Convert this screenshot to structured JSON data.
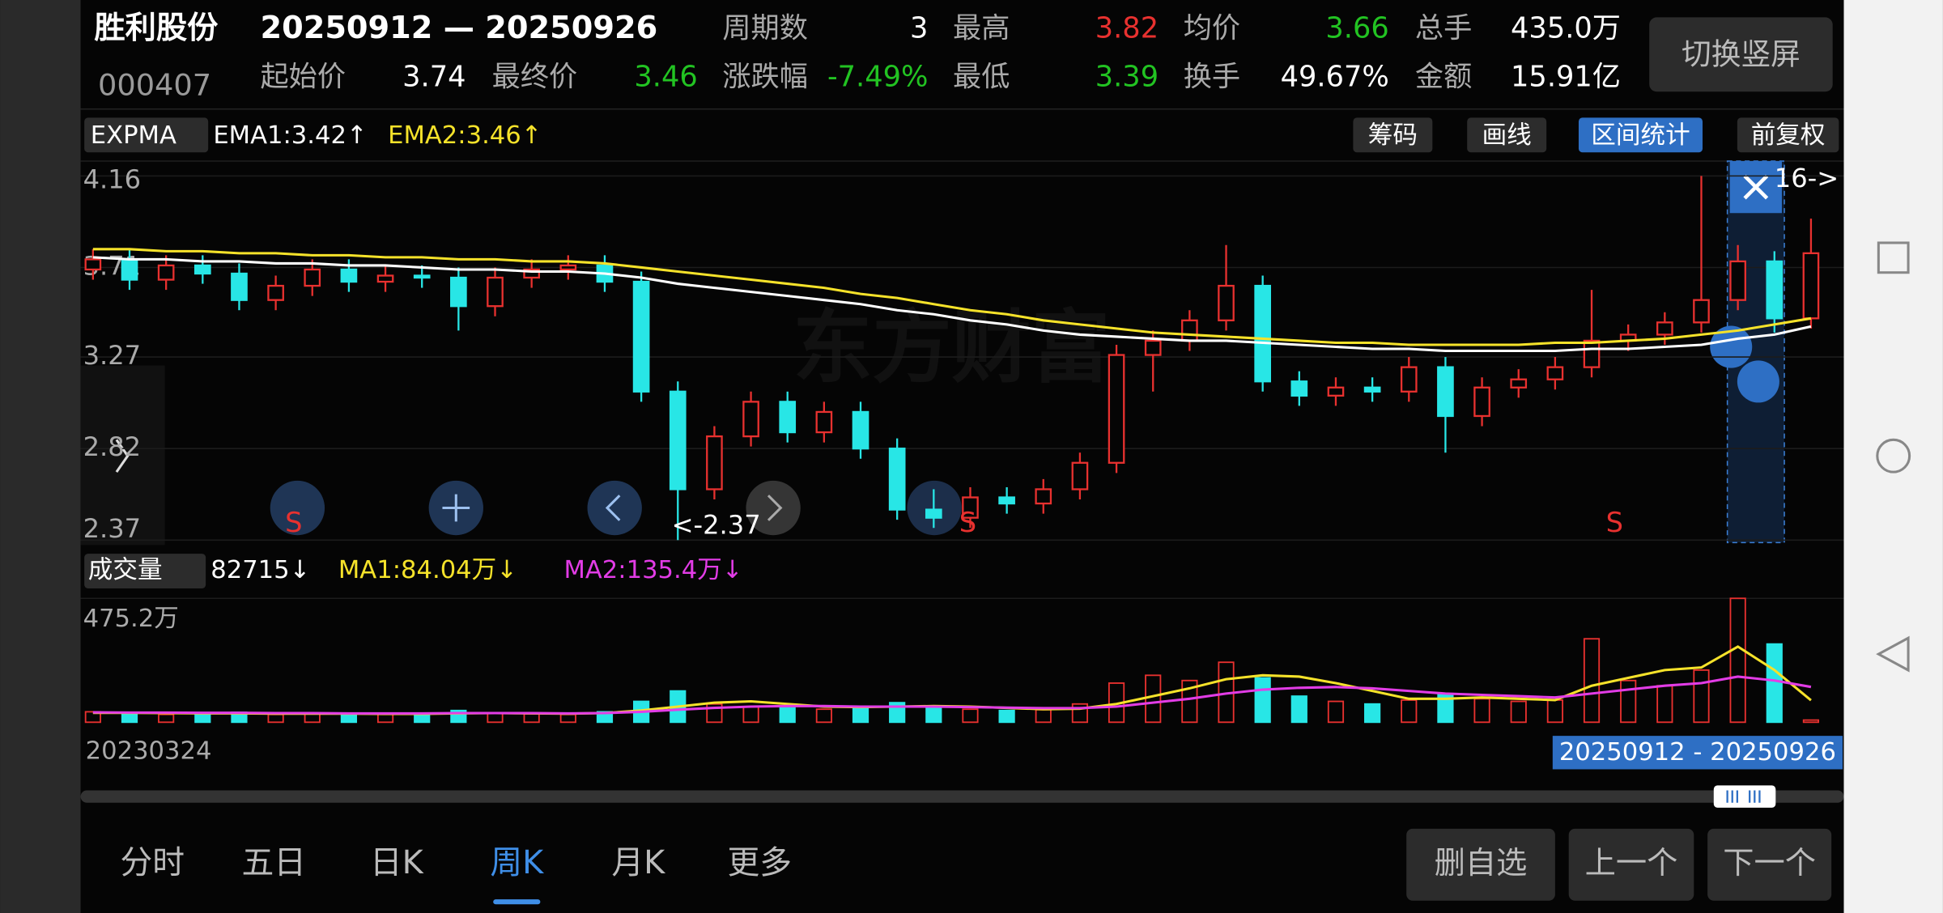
{
  "header": {
    "name": "胜利股份",
    "code": "000407",
    "range": "20250912 — 20250926",
    "button": "切换竖屏",
    "rows": [
      [
        {
          "label": "周期数",
          "value": "3",
          "color": "#ffffff"
        },
        {
          "label": "最高",
          "value": "3.82",
          "color": "#e8312f"
        },
        {
          "label": "均价",
          "value": "3.66",
          "color": "#22c322"
        },
        {
          "label": "总手",
          "value": "435.0万",
          "color": "#ffffff"
        }
      ],
      [
        {
          "label": "起始价",
          "value": "3.74",
          "color": "#ffffff"
        },
        {
          "label": "最终价",
          "value": "3.46",
          "color": "#22c322"
        },
        {
          "label": "涨跌幅",
          "value": "-7.49%",
          "color": "#22c322"
        },
        {
          "label": "最低",
          "value": "3.39",
          "color": "#22c322"
        },
        {
          "label": "换手",
          "value": "49.67%",
          "color": "#ffffff"
        },
        {
          "label": "金额",
          "value": "15.91亿",
          "color": "#ffffff"
        }
      ]
    ]
  },
  "toolbar": {
    "indicator": "EXPMA",
    "ema1": "EMA1:3.42↑",
    "ema2": "EMA2:3.46↑",
    "buttons": [
      "筹码",
      "画线",
      "区间统计",
      "前复权"
    ],
    "active": 2
  },
  "watermark": "东方财富",
  "chart_data": {
    "type": "candlestick",
    "ylim": [
      2.37,
      4.16
    ],
    "yticks": [
      4.16,
      3.71,
      3.27,
      2.82,
      2.37
    ],
    "up_color": "#e8312f",
    "down_color": "#28e6e6",
    "ohlc": [
      [
        3.7,
        3.8,
        3.65,
        3.75
      ],
      [
        3.75,
        3.8,
        3.6,
        3.65
      ],
      [
        3.65,
        3.77,
        3.6,
        3.72
      ],
      [
        3.72,
        3.77,
        3.63,
        3.68
      ],
      [
        3.68,
        3.73,
        3.5,
        3.55
      ],
      [
        3.55,
        3.67,
        3.5,
        3.62
      ],
      [
        3.62,
        3.75,
        3.57,
        3.7
      ],
      [
        3.7,
        3.75,
        3.59,
        3.64
      ],
      [
        3.64,
        3.72,
        3.59,
        3.67
      ],
      [
        3.67,
        3.72,
        3.61,
        3.66
      ],
      [
        3.66,
        3.71,
        3.4,
        3.52
      ],
      [
        3.52,
        3.71,
        3.47,
        3.66
      ],
      [
        3.66,
        3.75,
        3.61,
        3.7
      ],
      [
        3.7,
        3.77,
        3.65,
        3.72
      ],
      [
        3.72,
        3.77,
        3.59,
        3.64
      ],
      [
        3.64,
        3.69,
        3.05,
        3.1
      ],
      [
        3.1,
        3.15,
        2.37,
        2.62
      ],
      [
        2.62,
        2.93,
        2.57,
        2.88
      ],
      [
        2.88,
        3.1,
        2.83,
        3.05
      ],
      [
        3.05,
        3.1,
        2.85,
        2.9
      ],
      [
        2.9,
        3.05,
        2.85,
        3.0
      ],
      [
        3.0,
        3.05,
        2.77,
        2.82
      ],
      [
        2.82,
        2.87,
        2.47,
        2.52
      ],
      [
        2.52,
        2.62,
        2.43,
        2.48
      ],
      [
        2.48,
        2.63,
        2.43,
        2.58
      ],
      [
        2.58,
        2.63,
        2.5,
        2.55
      ],
      [
        2.55,
        2.67,
        2.5,
        2.62
      ],
      [
        2.62,
        2.8,
        2.57,
        2.75
      ],
      [
        2.75,
        3.33,
        2.7,
        3.28
      ],
      [
        3.28,
        3.4,
        3.1,
        3.35
      ],
      [
        3.35,
        3.5,
        3.3,
        3.45
      ],
      [
        3.45,
        3.82,
        3.4,
        3.62
      ],
      [
        3.62,
        3.67,
        3.1,
        3.15
      ],
      [
        3.15,
        3.2,
        3.03,
        3.08
      ],
      [
        3.08,
        3.17,
        3.03,
        3.12
      ],
      [
        3.12,
        3.17,
        3.05,
        3.1
      ],
      [
        3.1,
        3.27,
        3.05,
        3.22
      ],
      [
        3.22,
        3.27,
        2.8,
        2.98
      ],
      [
        2.98,
        3.17,
        2.93,
        3.12
      ],
      [
        3.12,
        3.21,
        3.07,
        3.16
      ],
      [
        3.16,
        3.27,
        3.11,
        3.22
      ],
      [
        3.22,
        3.6,
        3.17,
        3.35
      ],
      [
        3.35,
        3.43,
        3.3,
        3.38
      ],
      [
        3.38,
        3.49,
        3.33,
        3.44
      ],
      [
        3.44,
        4.16,
        3.39,
        3.55
      ],
      [
        3.55,
        3.82,
        3.5,
        3.74
      ],
      [
        3.74,
        3.79,
        3.39,
        3.46
      ],
      [
        3.46,
        3.95,
        3.41,
        3.78
      ]
    ],
    "series": [
      {
        "name": "EMA1",
        "color": "#ffffff",
        "values": [
          3.76,
          3.75,
          3.75,
          3.74,
          3.74,
          3.73,
          3.73,
          3.72,
          3.72,
          3.71,
          3.7,
          3.7,
          3.69,
          3.69,
          3.68,
          3.66,
          3.63,
          3.61,
          3.59,
          3.57,
          3.55,
          3.53,
          3.5,
          3.48,
          3.45,
          3.43,
          3.4,
          3.38,
          3.37,
          3.36,
          3.35,
          3.35,
          3.34,
          3.33,
          3.32,
          3.31,
          3.31,
          3.3,
          3.3,
          3.3,
          3.3,
          3.31,
          3.31,
          3.32,
          3.33,
          3.36,
          3.38,
          3.42
        ]
      },
      {
        "name": "EMA2",
        "color": "#f5e22a",
        "values": [
          3.8,
          3.8,
          3.79,
          3.79,
          3.78,
          3.78,
          3.77,
          3.77,
          3.76,
          3.76,
          3.75,
          3.75,
          3.74,
          3.74,
          3.73,
          3.71,
          3.69,
          3.67,
          3.65,
          3.63,
          3.61,
          3.58,
          3.56,
          3.53,
          3.5,
          3.48,
          3.45,
          3.43,
          3.41,
          3.39,
          3.38,
          3.37,
          3.36,
          3.35,
          3.34,
          3.34,
          3.33,
          3.33,
          3.33,
          3.33,
          3.34,
          3.34,
          3.35,
          3.36,
          3.38,
          3.4,
          3.43,
          3.46
        ]
      }
    ],
    "annotations": [
      "<-2.37",
      "16->",
      "S",
      "S",
      "S"
    ]
  },
  "volume": {
    "legend": "成交量",
    "last": "82715↓",
    "ma1": "MA1:84.04万↓",
    "ma2": "MA2:135.4万↓",
    "ylim": [
      0,
      475.2
    ],
    "yticks": [
      {
        "value": 475.2,
        "label": "475.2万"
      }
    ],
    "values": [
      40,
      35,
      30,
      32,
      38,
      30,
      35,
      33,
      30,
      30,
      45,
      35,
      32,
      30,
      40,
      80,
      120,
      70,
      60,
      55,
      50,
      60,
      75,
      60,
      50,
      45,
      48,
      70,
      150,
      180,
      160,
      230,
      170,
      100,
      80,
      70,
      85,
      110,
      90,
      80,
      85,
      320,
      160,
      140,
      200,
      475.2,
      300,
      8.27
    ],
    "series": [
      {
        "name": "MA1",
        "color": "#f5e22a",
        "values": [
          36,
          36,
          35,
          34,
          34,
          33,
          33,
          33,
          32,
          32,
          34,
          35,
          34,
          33,
          35,
          45,
          60,
          75,
          80,
          70,
          60,
          58,
          60,
          62,
          60,
          55,
          50,
          52,
          70,
          100,
          130,
          165,
          180,
          175,
          150,
          120,
          90,
          90,
          95,
          90,
          85,
          140,
          170,
          200,
          210,
          290,
          200,
          84.04
        ]
      },
      {
        "name": "MA2",
        "color": "#e23ce6",
        "values": [
          38,
          37,
          37,
          36,
          36,
          35,
          35,
          34,
          34,
          34,
          35,
          35,
          35,
          34,
          35,
          40,
          48,
          55,
          60,
          62,
          62,
          60,
          60,
          60,
          58,
          56,
          54,
          54,
          60,
          75,
          90,
          110,
          125,
          132,
          135,
          130,
          120,
          110,
          105,
          100,
          95,
          110,
          125,
          140,
          150,
          175,
          160,
          135.4
        ]
      }
    ]
  },
  "footer": {
    "start_date": "20230324",
    "selection": "20250912 - 20250926",
    "tabs": [
      "分时",
      "五日",
      "日K",
      "周K",
      "月K",
      "更多"
    ],
    "active_tab": 3,
    "buttons": [
      "删自选",
      "上一个",
      "下一个"
    ]
  }
}
